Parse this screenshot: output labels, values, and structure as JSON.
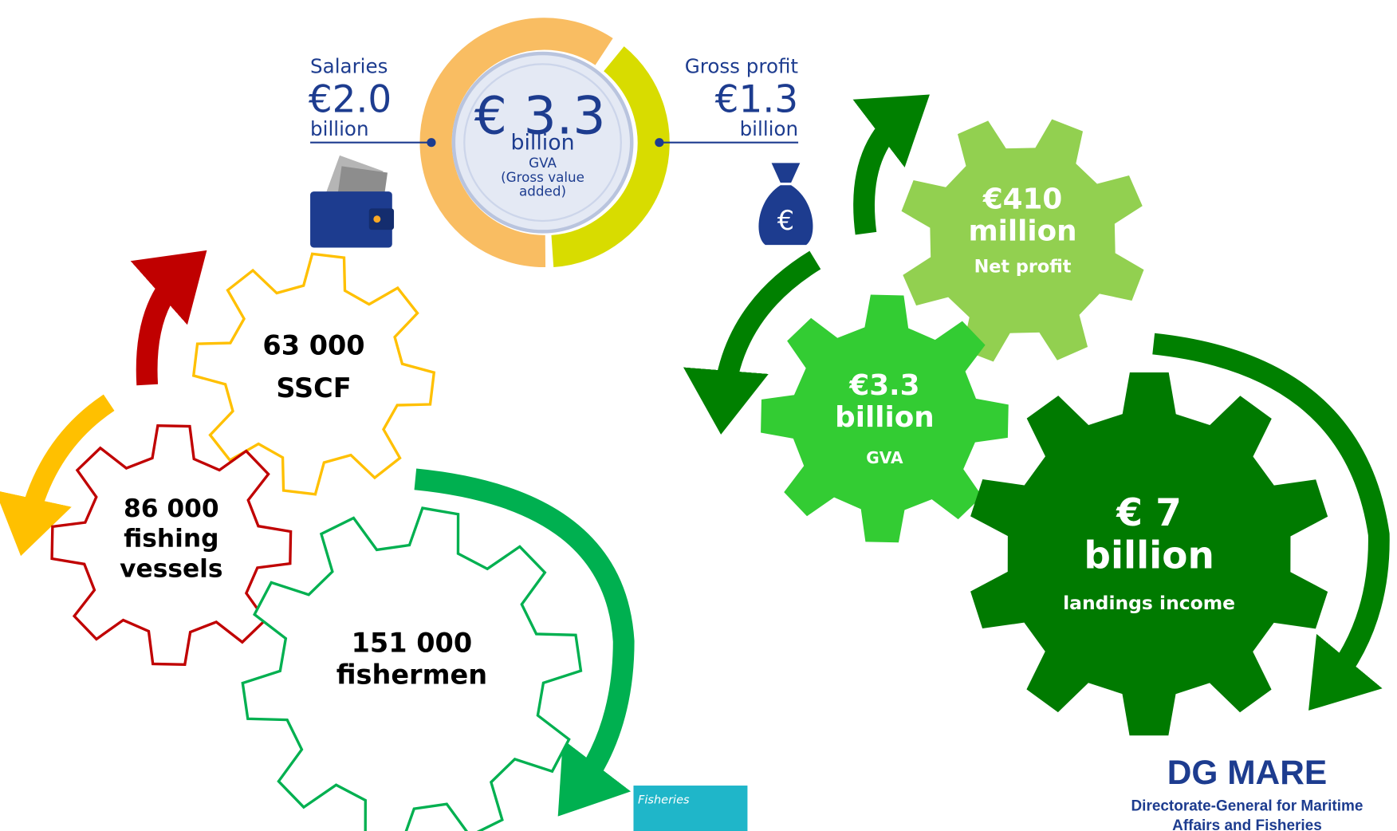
{
  "gva_ring": {
    "value": "€ 3.3",
    "unit": "billion",
    "lines": [
      "GVA",
      "(Gross value",
      "added)"
    ]
  },
  "salaries": {
    "label": "Salaries",
    "value": "€2.0",
    "unit": "billion"
  },
  "gross_profit": {
    "label": "Gross profit",
    "value": "€1.3",
    "unit": "billion"
  },
  "left_gears": [
    {
      "lines": [
        "63 000",
        "SSCF"
      ]
    },
    {
      "lines": [
        "86 000",
        "fishing",
        "vessels"
      ]
    },
    {
      "lines": [
        "151 000",
        "fishermen"
      ]
    }
  ],
  "right_gears": [
    {
      "lines": [
        "€410",
        "million"
      ],
      "caption": "Net profit"
    },
    {
      "lines": [
        "€3.3",
        "billion"
      ],
      "caption": "GVA"
    },
    {
      "lines": [
        "€ 7",
        "billion"
      ],
      "caption": "landings income"
    }
  ],
  "tag": "Fisheries",
  "footer": {
    "title": "DG MARE",
    "lines": [
      "Directorate-General for Maritime",
      "Affairs and Fisheries"
    ]
  }
}
